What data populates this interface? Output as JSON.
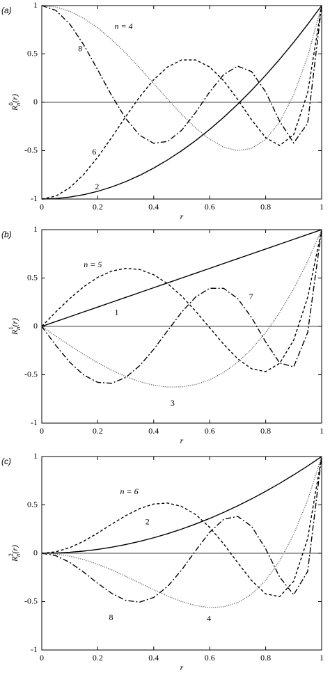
{
  "chart_data": [
    {
      "type": "line",
      "panel": "(a)",
      "ylabel": {
        "base": "R",
        "sup": "0",
        "sub": "n",
        "arg": "(r)"
      },
      "xlabel": "r",
      "x": [
        0,
        0.05,
        0.1,
        0.15,
        0.2,
        0.25,
        0.3,
        0.35,
        0.4,
        0.45,
        0.5,
        0.55,
        0.6,
        0.65,
        0.7,
        0.75,
        0.8,
        0.85,
        0.9,
        0.95,
        1
      ],
      "xlim": [
        0,
        1
      ],
      "ylim": [
        -1,
        1
      ],
      "xticks": [
        0,
        0.2,
        0.4,
        0.6,
        0.8,
        1
      ],
      "yticks": [
        -1,
        -0.5,
        0,
        0.5,
        1
      ],
      "zero_line": true,
      "series": [
        {
          "name": "n = 4",
          "color": "#666666",
          "dash": "dotted",
          "values": [
            1,
            0.985,
            0.941,
            0.868,
            0.77,
            0.648,
            0.509,
            0.355,
            0.194,
            0.031,
            -0.125,
            -0.266,
            -0.382,
            -0.464,
            -0.499,
            -0.477,
            -0.382,
            -0.203,
            0.077,
            0.472,
            1
          ]
        },
        {
          "name": "8",
          "color": "#000000",
          "dash": "dashdot",
          "values": [
            1,
            0.951,
            0.809,
            0.594,
            0.335,
            0.068,
            -0.168,
            -0.341,
            -0.424,
            -0.404,
            -0.289,
            -0.104,
            0.108,
            0.287,
            0.374,
            0.317,
            0.108,
            -0.196,
            -0.42,
            -0.218,
            1
          ]
        },
        {
          "name": "6",
          "color": "#000000",
          "dash": "dashed",
          "values": [
            -1,
            -0.97,
            -0.883,
            -0.745,
            -0.567,
            -0.362,
            -0.148,
            0.057,
            0.234,
            0.366,
            0.438,
            0.438,
            0.365,
            0.223,
            0.03,
            -0.183,
            -0.365,
            -0.447,
            -0.334,
            0.097,
            1
          ]
        },
        {
          "name": "2",
          "color": "#000000",
          "dash": "solid",
          "values": [
            -1,
            -0.995,
            -0.98,
            -0.955,
            -0.92,
            -0.875,
            -0.82,
            -0.755,
            -0.68,
            -0.595,
            -0.5,
            -0.395,
            -0.28,
            -0.155,
            -0.02,
            0.125,
            0.28,
            0.445,
            0.62,
            0.805,
            1
          ]
        }
      ]
    },
    {
      "type": "line",
      "panel": "(b)",
      "ylabel": {
        "base": "R",
        "sup": "1",
        "sub": "n",
        "arg": "(r)"
      },
      "xlabel": "r",
      "x": [
        0,
        0.05,
        0.1,
        0.15,
        0.2,
        0.25,
        0.3,
        0.35,
        0.4,
        0.45,
        0.5,
        0.55,
        0.6,
        0.65,
        0.7,
        0.75,
        0.8,
        0.85,
        0.9,
        0.95,
        1
      ],
      "xlim": [
        0,
        1
      ],
      "ylim": [
        -1,
        1
      ],
      "xticks": [
        0,
        0.2,
        0.4,
        0.6,
        0.8,
        1
      ],
      "yticks": [
        -1,
        -0.5,
        0,
        0.5,
        1
      ],
      "zero_line": true,
      "series": [
        {
          "name": "1",
          "color": "#000000",
          "dash": "solid",
          "values": [
            0,
            0.05,
            0.1,
            0.15,
            0.2,
            0.25,
            0.3,
            0.35,
            0.4,
            0.45,
            0.5,
            0.55,
            0.6,
            0.65,
            0.7,
            0.75,
            0.8,
            0.85,
            0.9,
            0.95,
            1
          ]
        },
        {
          "name": "n = 5",
          "color": "#000000",
          "dash": "dashed",
          "values": [
            0,
            0.149,
            0.288,
            0.41,
            0.507,
            0.572,
            0.6,
            0.588,
            0.534,
            0.441,
            0.313,
            0.157,
            -0.014,
            -0.185,
            -0.335,
            -0.439,
            -0.467,
            -0.382,
            -0.143,
            0.299,
            1
          ]
        },
        {
          "name": "3",
          "color": "#666666",
          "dash": "dotted",
          "values": [
            0,
            -0.1,
            -0.197,
            -0.29,
            -0.376,
            -0.453,
            -0.519,
            -0.571,
            -0.608,
            -0.627,
            -0.625,
            -0.601,
            -0.552,
            -0.476,
            -0.371,
            -0.234,
            -0.064,
            0.142,
            0.387,
            0.672,
            1
          ]
        },
        {
          "name": "7",
          "color": "#000000",
          "dash": "dashdot",
          "values": [
            0,
            -0.196,
            -0.371,
            -0.503,
            -0.579,
            -0.588,
            -0.528,
            -0.406,
            -0.237,
            -0.043,
            0.148,
            0.304,
            0.394,
            0.393,
            0.288,
            0.09,
            -0.161,
            -0.378,
            -0.419,
            -0.064,
            1
          ]
        }
      ]
    },
    {
      "type": "line",
      "panel": "(c)",
      "ylabel": {
        "base": "R",
        "sup": "2",
        "sub": "n",
        "arg": "(r)"
      },
      "xlabel": "r",
      "x": [
        0,
        0.05,
        0.1,
        0.15,
        0.2,
        0.25,
        0.3,
        0.35,
        0.4,
        0.45,
        0.5,
        0.55,
        0.6,
        0.65,
        0.7,
        0.75,
        0.8,
        0.85,
        0.9,
        0.95,
        1
      ],
      "xlim": [
        0,
        1
      ],
      "ylim": [
        -1,
        1
      ],
      "xticks": [
        0,
        0.2,
        0.4,
        0.6,
        0.8,
        1
      ],
      "yticks": [
        -1,
        -0.5,
        0,
        0.5,
        1
      ],
      "zero_line": true,
      "series": [
        {
          "name": "n = 6",
          "color": "#000000",
          "dash": "dashed",
          "values": [
            0,
            0.015,
            0.058,
            0.125,
            0.209,
            0.301,
            0.389,
            0.462,
            0.509,
            0.519,
            0.484,
            0.4,
            0.268,
            0.096,
            -0.097,
            -0.283,
            -0.42,
            -0.448,
            -0.29,
            0.151,
            1
          ]
        },
        {
          "name": "2",
          "color": "#000000",
          "dash": "solid",
          "values": [
            0,
            0.0025,
            0.01,
            0.0225,
            0.04,
            0.0625,
            0.09,
            0.1225,
            0.16,
            0.2025,
            0.25,
            0.3025,
            0.36,
            0.4225,
            0.49,
            0.5625,
            0.64,
            0.7225,
            0.81,
            0.9025,
            1
          ]
        },
        {
          "name": "8",
          "color": "#000000",
          "dash": "dashdot",
          "values": [
            0,
            -0.025,
            -0.094,
            -0.196,
            -0.311,
            -0.415,
            -0.487,
            -0.505,
            -0.457,
            -0.342,
            -0.172,
            0.028,
            0.218,
            0.351,
            0.381,
            0.278,
            0.046,
            -0.246,
            -0.429,
            -0.188,
            1
          ]
        },
        {
          "name": "4",
          "color": "#666666",
          "dash": "dotted",
          "values": [
            0,
            -0.007,
            -0.03,
            -0.065,
            -0.114,
            -0.172,
            -0.238,
            -0.307,
            -0.378,
            -0.443,
            -0.5,
            -0.541,
            -0.562,
            -0.553,
            -0.51,
            -0.422,
            -0.282,
            -0.079,
            0.194,
            0.551,
            1
          ]
        }
      ]
    }
  ]
}
